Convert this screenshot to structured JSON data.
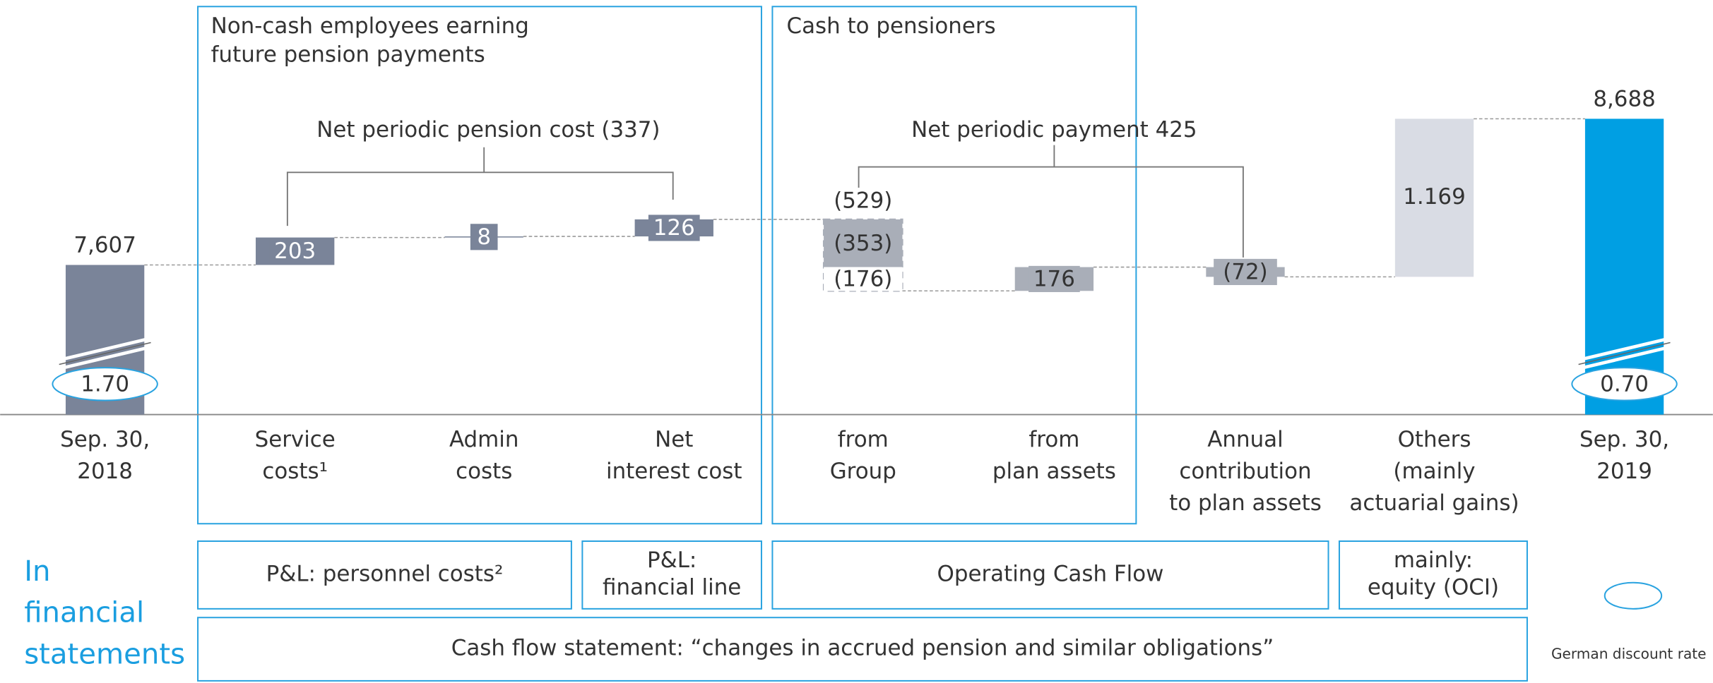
{
  "chart_data": {
    "type": "waterfall",
    "box_titles": [
      [
        "Non-cash employees earning",
        "future pension payments"
      ],
      [
        "Cash to pensioners"
      ]
    ],
    "brackets": [
      "Net periodic pension cost (337)",
      "Net periodic payment 425"
    ],
    "categories": [
      [
        "Sep. 30,",
        "2018"
      ],
      [
        "Service",
        "costs¹"
      ],
      [
        "Admin",
        "costs"
      ],
      [
        "Net",
        "interest cost"
      ],
      [
        "from",
        "Group"
      ],
      [
        "from",
        "plan assets"
      ],
      [
        "Annual",
        "contribution",
        "to plan assets"
      ],
      [
        "Others",
        "(mainly",
        "actuarial gains)"
      ],
      [
        "Sep. 30,",
        "2019"
      ]
    ],
    "values": [
      7607,
      203,
      8,
      126,
      -529,
      176,
      -72,
      1169,
      8688
    ],
    "value_labels": [
      "7,607",
      "203",
      "8",
      "126",
      "(529)",
      "176",
      "(72)",
      "1.169",
      "8,688"
    ],
    "colors": [
      "#7a8499",
      "#7a8499",
      "#7a8499",
      "#7a8499",
      "#a9aeb8",
      "#a9aeb8",
      "#a9aeb8",
      "#d9dce4",
      "#009fe3"
    ],
    "parts": [
      null,
      null,
      null,
      null,
      [
        -353,
        -176
      ],
      null,
      null,
      null,
      null
    ],
    "part_labels": [
      null,
      null,
      null,
      null,
      [
        "(353)",
        "(176)"
      ],
      null,
      null,
      null,
      null
    ],
    "discount_rates": [
      {
        "value": 1.7,
        "label": "1.70"
      },
      null,
      null,
      null,
      null,
      null,
      null,
      null,
      {
        "value": 0.7,
        "label": "0.70"
      }
    ],
    "ylim": [
      6500,
      8800
    ],
    "statements_label": [
      "In",
      "financial",
      "statements"
    ],
    "statement_boxes": [
      [
        "P&L: personnel costs²"
      ],
      [
        "P&L:",
        "financial line"
      ],
      [
        "Operating Cash Flow"
      ],
      [
        "mainly:",
        "equity (OCI)"
      ],
      [
        "Cash flow statement: “changes in accrued pension and similar obligations”"
      ]
    ],
    "legend": "German discount rate"
  }
}
